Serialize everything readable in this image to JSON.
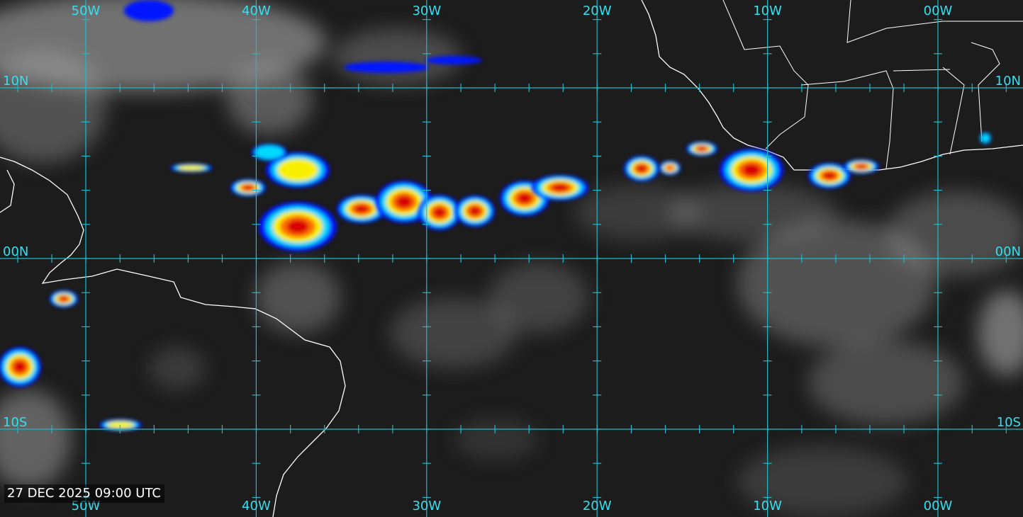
{
  "map": {
    "longitude_labels_top": [
      "50W",
      "40W",
      "30W",
      "20W",
      "10W",
      "00W"
    ],
    "longitude_labels_bottom": [
      "50W",
      "40W",
      "30W",
      "20W",
      "10W",
      "00W"
    ],
    "latitude_labels_left": [
      "10N",
      "00N",
      "10S"
    ],
    "latitude_labels_right": [
      "10N",
      "00N",
      "10S"
    ],
    "timestamp": "27 DEC 2025 09:00 UTC"
  }
}
